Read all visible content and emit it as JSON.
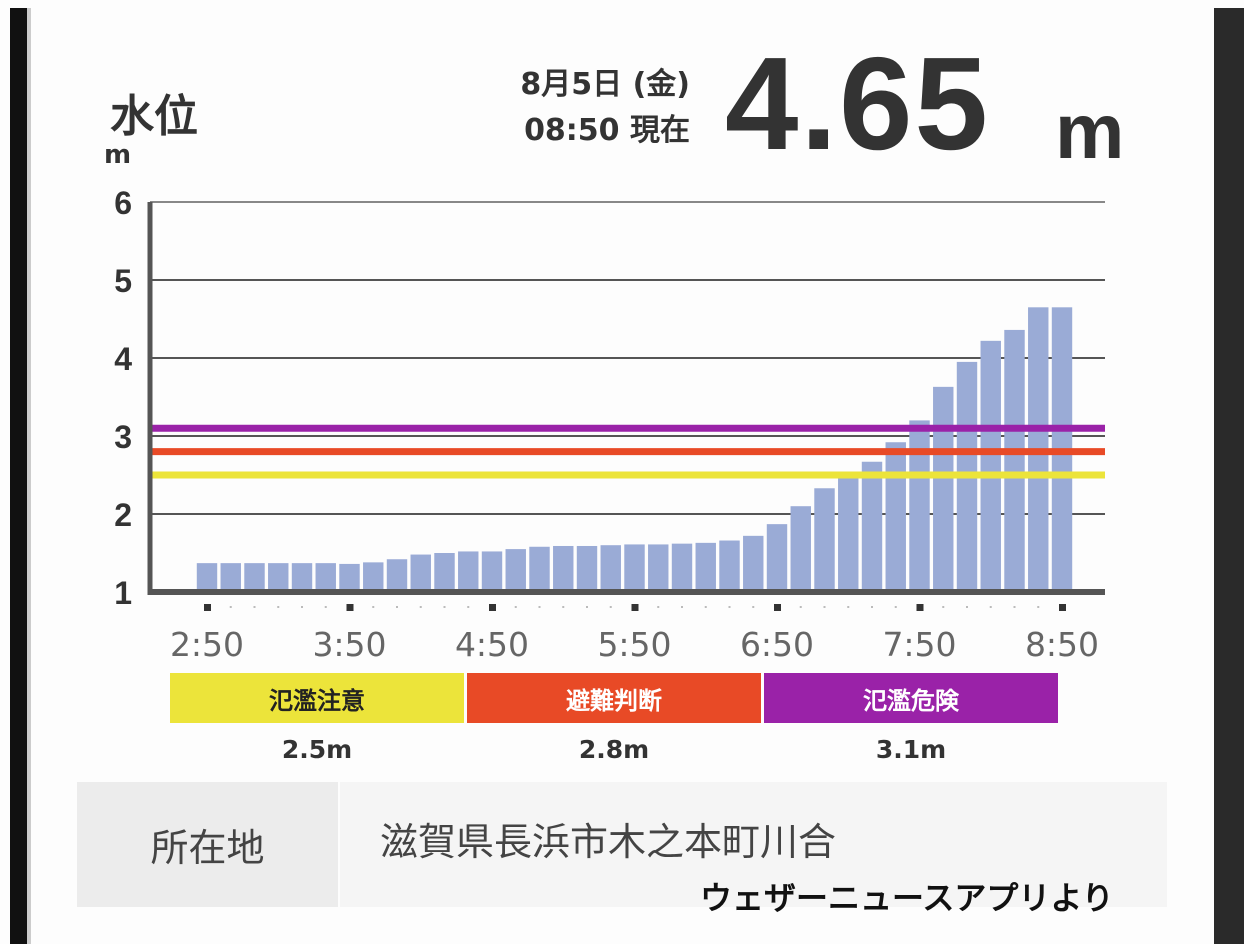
{
  "header": {
    "title": "水位",
    "unit": "m",
    "date": "8月5日 (金)",
    "time": "08:50 現在",
    "current_value": "4.65",
    "current_unit": "m"
  },
  "chart_data": {
    "type": "bar",
    "ylim": [
      1,
      6
    ],
    "yticks": [
      "1",
      "2",
      "3",
      "4",
      "5",
      "6"
    ],
    "xticks": [
      "2:50",
      "3:50",
      "4:50",
      "5:50",
      "6:50",
      "7:50",
      "8:50"
    ],
    "interval_minutes": 10,
    "values": [
      1.37,
      1.37,
      1.37,
      1.37,
      1.37,
      1.37,
      1.36,
      1.38,
      1.42,
      1.48,
      1.5,
      1.52,
      1.52,
      1.55,
      1.58,
      1.59,
      1.59,
      1.6,
      1.61,
      1.61,
      1.62,
      1.63,
      1.66,
      1.72,
      1.87,
      2.1,
      2.33,
      2.46,
      2.67,
      2.92,
      3.2,
      3.63,
      3.95,
      4.22,
      4.36,
      4.65,
      4.65
    ],
    "bar_color": "#9aabd6",
    "thresholds": [
      {
        "name": "氾濫注意",
        "value": 2.5,
        "label": "2.5m",
        "color": "#ece43a",
        "text_color": "#222222"
      },
      {
        "name": "避難判断",
        "value": 2.8,
        "label": "2.8m",
        "color": "#e84a26",
        "text_color": "#ffffff"
      },
      {
        "name": "氾濫危険",
        "value": 3.1,
        "label": "3.1m",
        "color": "#9a22a8",
        "text_color": "#ffffff"
      }
    ]
  },
  "location": {
    "label": "所在地",
    "value": "滋賀県長浜市木之本町川合"
  },
  "credit": "ウェザーニュースアプリより"
}
